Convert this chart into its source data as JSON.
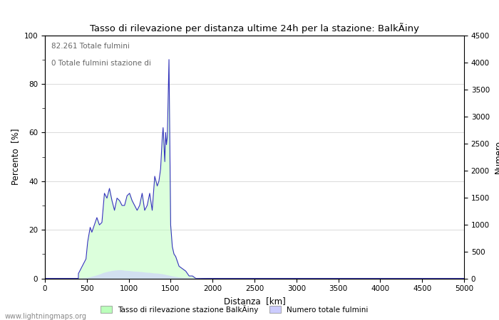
{
  "title": "Tasso di rilevazione per distanza ultime 24h per la stazione: BalkÃiny",
  "xlabel": "Distanza  [km]",
  "ylabel_left": "Percento  [%]",
  "ylabel_right": "Numero",
  "annotation_line1": "82.261 Totale fulmini",
  "annotation_line2": "0 Totale fulmini stazione di",
  "legend_label1": "Tasso di rilevazione stazione BalkÃiny",
  "legend_label2": "Numero totale fulmini",
  "watermark": "www.lightningmaps.org",
  "xlim": [
    0,
    5000
  ],
  "ylim_left": [
    0,
    100
  ],
  "ylim_right": [
    0,
    4500
  ],
  "x_ticks": [
    0,
    500,
    1000,
    1500,
    2000,
    2500,
    3000,
    3500,
    4000,
    4500,
    5000
  ],
  "y_ticks_left": [
    0,
    20,
    40,
    60,
    80,
    100
  ],
  "y_ticks_right": [
    0,
    500,
    1000,
    1500,
    2000,
    2500,
    3000,
    3500,
    4000,
    4500
  ],
  "line_color": "#3333bb",
  "fill_color_detection": "#bbffbb",
  "fill_color_number": "#ccccff",
  "grid_color": "#cccccc",
  "det_x": [
    0,
    399,
    400,
    430,
    460,
    490,
    510,
    540,
    560,
    590,
    620,
    650,
    680,
    710,
    740,
    770,
    800,
    830,
    860,
    890,
    920,
    950,
    980,
    1010,
    1040,
    1070,
    1100,
    1130,
    1160,
    1190,
    1220,
    1250,
    1280,
    1310,
    1340,
    1360,
    1380,
    1400,
    1410,
    1420,
    1430,
    1440,
    1450,
    1460,
    1480,
    1500,
    1520,
    1540,
    1560,
    1580,
    1600,
    1640,
    1680,
    1720,
    1760,
    1800,
    1850,
    1900,
    2000,
    5000
  ],
  "det_y": [
    0,
    0,
    2,
    4,
    6,
    8,
    15,
    21,
    19,
    22,
    25,
    22,
    23,
    35,
    33,
    37,
    32,
    28,
    33,
    32,
    30,
    30,
    34,
    35,
    32,
    30,
    28,
    30,
    35,
    28,
    30,
    35,
    28,
    42,
    38,
    40,
    45,
    58,
    62,
    55,
    48,
    60,
    55,
    58,
    90,
    22,
    13,
    10,
    9,
    7,
    5,
    4,
    3,
    1,
    1,
    0,
    0,
    0,
    0,
    0
  ],
  "num_x": [
    0,
    399,
    400,
    450,
    500,
    550,
    600,
    650,
    700,
    750,
    800,
    850,
    900,
    950,
    1000,
    1050,
    1100,
    1150,
    1200,
    1250,
    1300,
    1350,
    1400,
    1430,
    1460,
    1490,
    1520,
    1560,
    1600,
    1650,
    1700,
    1750,
    1800,
    1850,
    1900,
    2000,
    5000
  ],
  "num_y": [
    0,
    0,
    2,
    8,
    18,
    35,
    55,
    80,
    110,
    130,
    145,
    155,
    160,
    150,
    145,
    135,
    130,
    125,
    115,
    110,
    100,
    95,
    85,
    75,
    65,
    55,
    45,
    35,
    25,
    18,
    12,
    8,
    5,
    3,
    1,
    0,
    0
  ]
}
